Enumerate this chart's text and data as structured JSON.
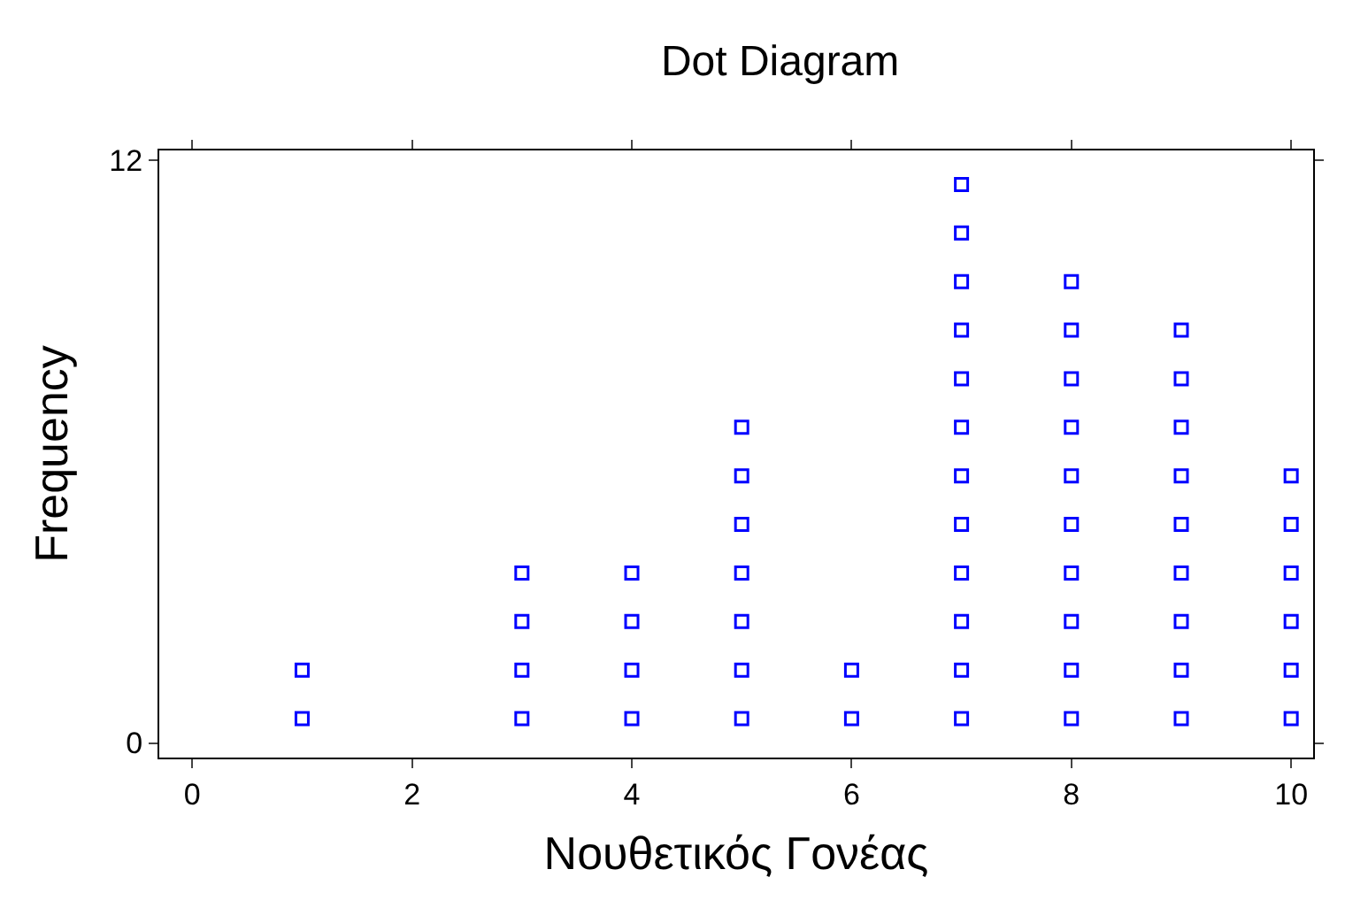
{
  "chart_data": {
    "type": "scatter",
    "title": "Dot Diagram",
    "xlabel": "Νουθετικός Γονέας",
    "ylabel": "Frequency",
    "x": [
      1,
      1,
      3,
      3,
      3,
      3,
      4,
      4,
      4,
      4,
      5,
      5,
      5,
      5,
      5,
      5,
      5,
      6,
      6,
      7,
      7,
      7,
      7,
      7,
      7,
      7,
      7,
      7,
      7,
      7,
      7,
      8,
      8,
      8,
      8,
      8,
      8,
      8,
      8,
      8,
      8,
      9,
      9,
      9,
      9,
      9,
      9,
      9,
      9,
      9,
      10,
      10,
      10,
      10,
      10,
      10
    ],
    "series": [
      {
        "color": "#0000ff",
        "values": [
          0.5,
          1.5,
          0.5,
          1.5,
          2.5,
          3.5,
          0.5,
          1.5,
          2.5,
          3.5,
          0.5,
          1.5,
          2.5,
          3.5,
          4.5,
          5.5,
          6.5,
          0.5,
          1.5,
          0.5,
          1.5,
          2.5,
          3.5,
          4.5,
          5.5,
          6.5,
          7.5,
          8.5,
          9.5,
          10.5,
          11.5,
          0.5,
          1.5,
          2.5,
          3.5,
          4.5,
          5.5,
          6.5,
          7.5,
          8.5,
          9.5,
          0.5,
          1.5,
          2.5,
          3.5,
          4.5,
          5.5,
          6.5,
          7.5,
          8.5,
          0.5,
          1.5,
          2.5,
          3.5,
          4.5,
          5.5
        ]
      }
    ],
    "xlim": [
      -0.3,
      10.2
    ],
    "xticks": [
      0,
      2,
      4,
      6,
      8,
      10
    ],
    "ylim": [
      -0.3,
      12.2
    ],
    "yticks": [
      0,
      12
    ],
    "marker": "square"
  }
}
